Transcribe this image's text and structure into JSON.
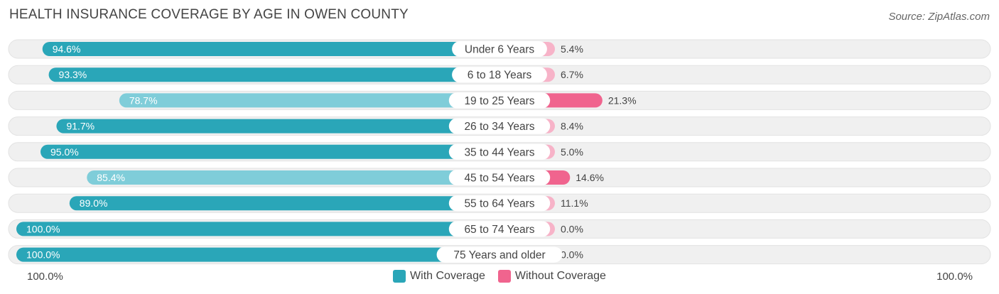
{
  "header": {
    "title": "HEALTH INSURANCE COVERAGE BY AGE IN OWEN COUNTY",
    "source": "Source: ZipAtlas.com"
  },
  "axis": {
    "left_label": "100.0%",
    "right_label": "100.0%"
  },
  "legend": {
    "with_label": "With Coverage",
    "without_label": "Without Coverage"
  },
  "colors": {
    "with_strong": "#2aa6b8",
    "with_light": "#7fcdd9",
    "without_strong": "#f0648e",
    "without_light": "#f7b3c8",
    "track": "#f0f0f0"
  },
  "chart_data": {
    "type": "bar",
    "orientation": "diverging-horizontal",
    "title": "HEALTH INSURANCE COVERAGE BY AGE IN OWEN COUNTY",
    "categories": [
      "Under 6 Years",
      "6 to 18 Years",
      "19 to 25 Years",
      "26 to 34 Years",
      "35 to 44 Years",
      "45 to 54 Years",
      "55 to 64 Years",
      "65 to 74 Years",
      "75 Years and older"
    ],
    "series": [
      {
        "name": "With Coverage",
        "values": [
          94.6,
          93.3,
          78.7,
          91.7,
          95.0,
          85.4,
          89.0,
          100.0,
          100.0
        ],
        "labels": [
          "94.6%",
          "93.3%",
          "78.7%",
          "91.7%",
          "95.0%",
          "85.4%",
          "89.0%",
          "100.0%",
          "100.0%"
        ]
      },
      {
        "name": "Without Coverage",
        "values": [
          5.4,
          6.7,
          21.3,
          8.4,
          5.0,
          14.6,
          11.1,
          0.0,
          0.0
        ],
        "labels": [
          "5.4%",
          "6.7%",
          "21.3%",
          "8.4%",
          "5.0%",
          "14.6%",
          "11.1%",
          "0.0%",
          "0.0%"
        ]
      }
    ],
    "xlim": [
      -100,
      100
    ],
    "legend_position": "bottom-center"
  }
}
